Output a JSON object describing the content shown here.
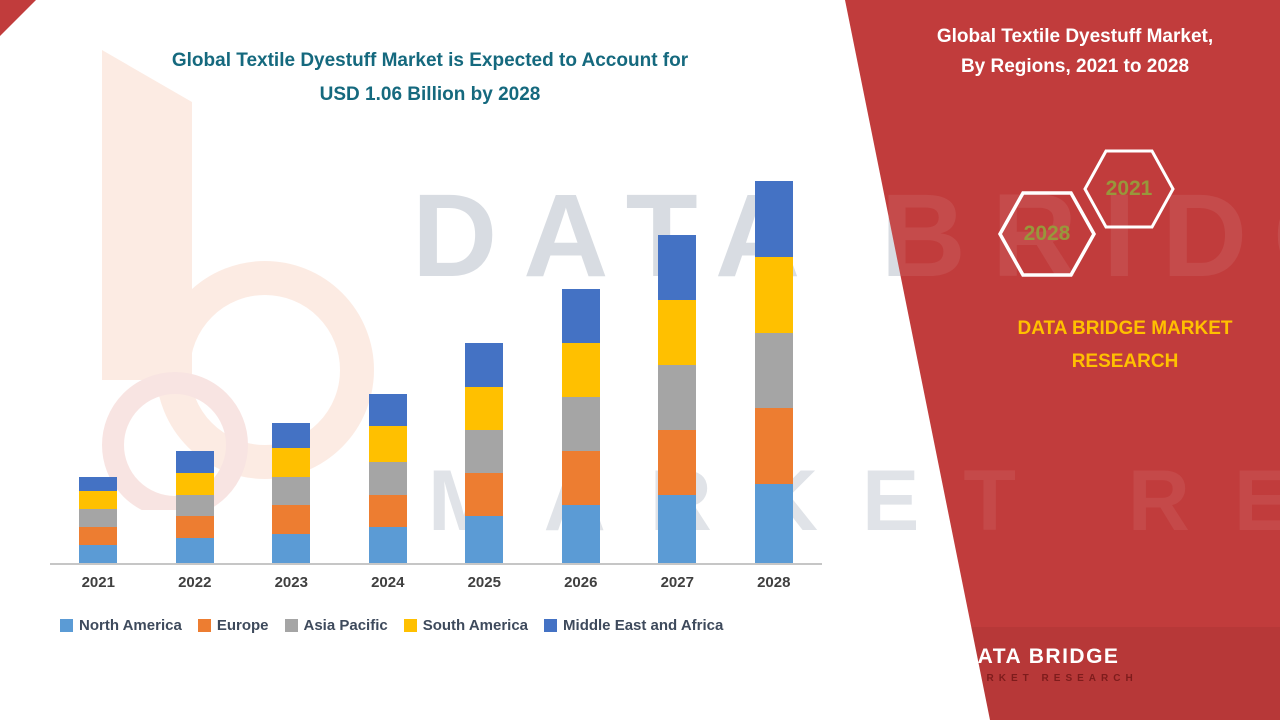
{
  "title": {
    "line1": "Global Textile Dyestuff Market is Expected to Account for",
    "line2": "USD 1.06 Billion by 2028"
  },
  "watermark": {
    "line1": "DATA BRIDGE",
    "line2": "MARKET RESEARCH"
  },
  "right_panel": {
    "heading_line1": "Global Textile Dyestuff Market,",
    "heading_line2": "By Regions, 2021 to 2028",
    "hex_badges": [
      {
        "label": "2028"
      },
      {
        "label": "2021"
      }
    ],
    "brand_line1": "DATA BRIDGE MARKET",
    "brand_line2": "RESEARCH",
    "footer_logo": {
      "name": "DATA BRIDGE",
      "subtitle": "MARKET RESEARCH"
    },
    "background_color": "#C13C3C",
    "accent_text_color": "#FFC000"
  },
  "chart_data": {
    "type": "bar",
    "stacked": true,
    "title": "Global Textile Dyestuff Market is Expected to Account for USD 1.06 Billion by 2028",
    "unit": "USD billion",
    "categories": [
      "2021",
      "2022",
      "2023",
      "2024",
      "2025",
      "2026",
      "2027",
      "2028"
    ],
    "series": [
      {
        "name": "North America",
        "color": "#5B9BD5",
        "values": [
          0.05,
          0.07,
          0.08,
          0.1,
          0.13,
          0.16,
          0.19,
          0.22
        ]
      },
      {
        "name": "Europe",
        "color": "#ED7D31",
        "values": [
          0.05,
          0.06,
          0.08,
          0.09,
          0.12,
          0.15,
          0.18,
          0.21
        ]
      },
      {
        "name": "Asia Pacific",
        "color": "#A5A5A5",
        "values": [
          0.05,
          0.06,
          0.08,
          0.09,
          0.12,
          0.15,
          0.18,
          0.21
        ]
      },
      {
        "name": "South America",
        "color": "#FFC000",
        "values": [
          0.05,
          0.06,
          0.08,
          0.1,
          0.12,
          0.15,
          0.18,
          0.21
        ]
      },
      {
        "name": "Middle East and Africa",
        "color": "#4472C4",
        "values": [
          0.04,
          0.06,
          0.07,
          0.09,
          0.12,
          0.15,
          0.18,
          0.21
        ]
      }
    ],
    "totals": [
      0.24,
      0.31,
      0.39,
      0.47,
      0.61,
      0.76,
      0.91,
      1.06
    ],
    "xlabel": "",
    "ylabel": "",
    "ylim": [
      0,
      1.1
    ],
    "grid": false,
    "legend_position": "bottom"
  }
}
